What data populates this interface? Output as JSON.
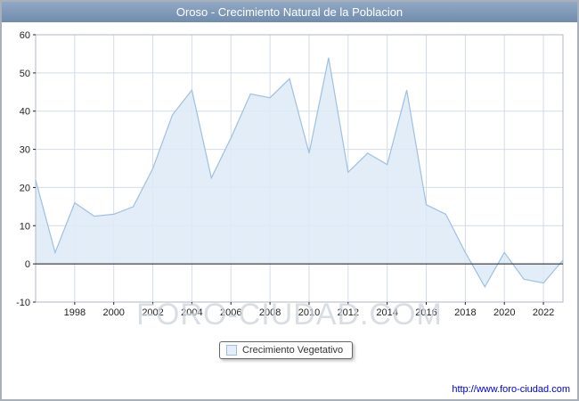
{
  "title": "Oroso - Crecimiento Natural de la Poblacion",
  "legend": {
    "label": "Crecimiento Vegetativo"
  },
  "watermark": "FORO-CIUDAD.COM",
  "footer": {
    "link": "http://www.foro-ciudad.com"
  },
  "colors": {
    "titlebar": "#7d96b6",
    "grid": "#d2dce9",
    "plot_border": "#b0b8c4",
    "zero_line": "#1a1a1a",
    "tick_text": "#222222",
    "line": "#9fc0e0",
    "fill": "#ddeaf7",
    "link": "#0000cc",
    "watermark": "#cdd3dc"
  },
  "chart_data": {
    "type": "area",
    "title": "Oroso - Crecimiento Natural de la Poblacion",
    "xlabel": "",
    "ylabel": "",
    "x": [
      1996,
      1997,
      1998,
      1999,
      2000,
      2001,
      2002,
      2003,
      2004,
      2005,
      2006,
      2007,
      2008,
      2009,
      2010,
      2011,
      2012,
      2013,
      2014,
      2015,
      2016,
      2017,
      2018,
      2019,
      2020,
      2021,
      2022,
      2023
    ],
    "series": [
      {
        "name": "Crecimiento Vegetativo",
        "values": [
          22,
          3,
          16,
          12.5,
          13,
          15,
          25,
          39,
          45.5,
          22.5,
          33,
          44.5,
          43.5,
          48.5,
          29,
          54,
          24,
          29,
          26,
          45.5,
          15.5,
          13,
          3,
          -6,
          3,
          -4,
          -5,
          1
        ]
      }
    ],
    "xlim": [
      1996,
      2023
    ],
    "ylim": [
      -10,
      60
    ],
    "xticks": [
      1998,
      2000,
      2002,
      2004,
      2006,
      2008,
      2010,
      2012,
      2014,
      2016,
      2018,
      2020,
      2022
    ],
    "yticks": [
      -10,
      0,
      10,
      20,
      30,
      40,
      50,
      60
    ],
    "grid": true,
    "legend_position": "bottom-center"
  }
}
